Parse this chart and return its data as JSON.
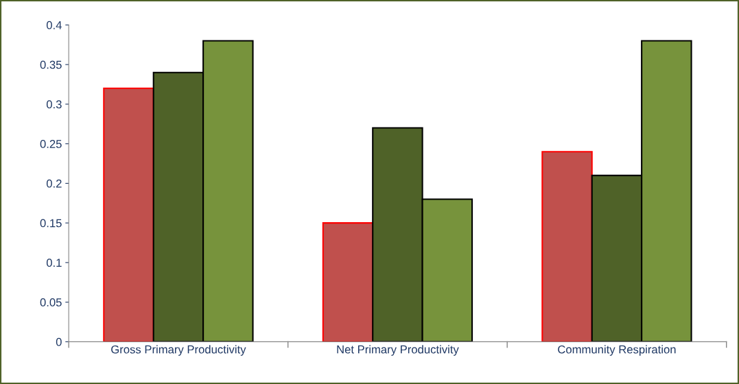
{
  "chart_data": {
    "type": "bar",
    "categories": [
      "Gross Primary Productivity",
      "Net Primary Productivity",
      "Community Respiration"
    ],
    "series": [
      {
        "color": "#c0504d",
        "values": [
          0.32,
          0.15,
          0.24
        ]
      },
      {
        "color": "#4f6228",
        "values": [
          0.34,
          0.27,
          0.21
        ]
      },
      {
        "color": "#77933c",
        "values": [
          0.38,
          0.18,
          0.38
        ]
      }
    ],
    "ylim": [
      0,
      0.4
    ],
    "yticks": [
      0,
      0.05,
      0.1,
      0.15,
      0.2,
      0.25,
      0.3,
      0.35,
      0.4
    ],
    "grid": false,
    "legend": false
  }
}
